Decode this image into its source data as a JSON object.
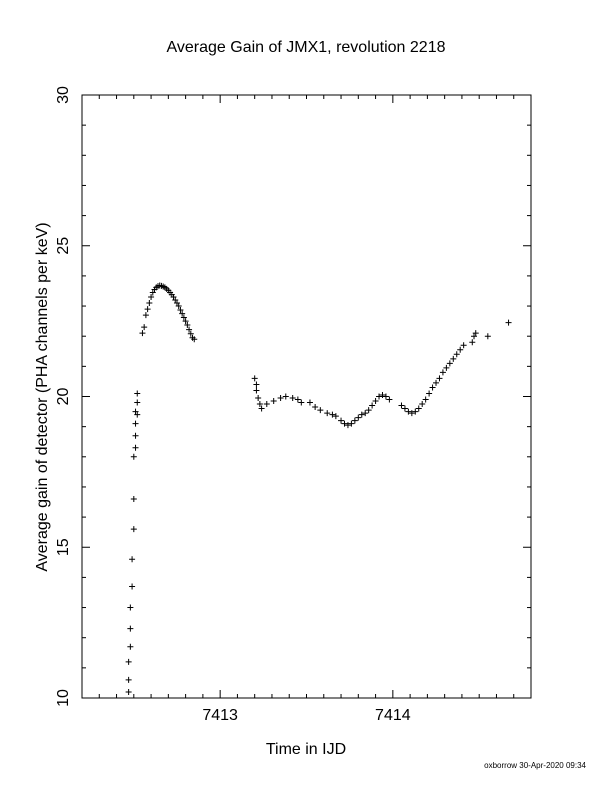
{
  "chart_data": {
    "type": "scatter",
    "title": "Average Gain of JMX1, revolution 2218",
    "xlabel": "Time in IJD",
    "ylabel": "Average gain of detector (PHA channels per keV)",
    "xlim": [
      7412.2,
      7414.8
    ],
    "ylim": [
      10,
      30
    ],
    "xticks": [
      7413,
      7414
    ],
    "yticks": [
      10,
      15,
      20,
      25,
      30
    ],
    "marker": "+",
    "grid": false,
    "series": [
      {
        "points": [
          [
            7412.47,
            10.2
          ],
          [
            7412.47,
            10.6
          ],
          [
            7412.47,
            11.2
          ],
          [
            7412.48,
            11.7
          ],
          [
            7412.48,
            12.3
          ],
          [
            7412.48,
            13.0
          ],
          [
            7412.49,
            13.7
          ],
          [
            7412.49,
            14.6
          ],
          [
            7412.5,
            15.6
          ],
          [
            7412.5,
            16.6
          ],
          [
            7412.5,
            18.0
          ],
          [
            7412.51,
            18.3
          ],
          [
            7412.51,
            18.7
          ],
          [
            7412.51,
            19.1
          ],
          [
            7412.52,
            19.4
          ],
          [
            7412.51,
            19.5
          ],
          [
            7412.52,
            19.8
          ],
          [
            7412.52,
            20.1
          ],
          [
            7412.55,
            22.1
          ],
          [
            7412.56,
            22.3
          ],
          [
            7412.57,
            22.7
          ],
          [
            7412.58,
            22.9
          ],
          [
            7412.59,
            23.1
          ],
          [
            7412.6,
            23.3
          ],
          [
            7412.61,
            23.45
          ],
          [
            7412.62,
            23.55
          ],
          [
            7412.63,
            23.62
          ],
          [
            7412.64,
            23.66
          ],
          [
            7412.65,
            23.68
          ],
          [
            7412.66,
            23.67
          ],
          [
            7412.67,
            23.65
          ],
          [
            7412.68,
            23.62
          ],
          [
            7412.69,
            23.57
          ],
          [
            7412.7,
            23.52
          ],
          [
            7412.71,
            23.45
          ],
          [
            7412.72,
            23.38
          ],
          [
            7412.73,
            23.3
          ],
          [
            7412.74,
            23.2
          ],
          [
            7412.75,
            23.1
          ],
          [
            7412.76,
            23.0
          ],
          [
            7412.77,
            22.87
          ],
          [
            7412.78,
            22.75
          ],
          [
            7412.79,
            22.62
          ],
          [
            7412.8,
            22.5
          ],
          [
            7412.81,
            22.37
          ],
          [
            7412.82,
            22.22
          ],
          [
            7412.83,
            22.08
          ],
          [
            7412.84,
            21.95
          ],
          [
            7412.85,
            21.9
          ],
          [
            7413.2,
            20.6
          ],
          [
            7413.21,
            20.4
          ],
          [
            7413.21,
            20.2
          ],
          [
            7413.22,
            19.95
          ],
          [
            7413.23,
            19.75
          ],
          [
            7413.24,
            19.6
          ],
          [
            7413.27,
            19.75
          ],
          [
            7413.31,
            19.85
          ],
          [
            7413.35,
            19.95
          ],
          [
            7413.38,
            20.0
          ],
          [
            7413.42,
            19.95
          ],
          [
            7413.45,
            19.9
          ],
          [
            7413.47,
            19.8
          ],
          [
            7413.52,
            19.8
          ],
          [
            7413.55,
            19.65
          ],
          [
            7413.58,
            19.55
          ],
          [
            7413.62,
            19.45
          ],
          [
            7413.65,
            19.4
          ],
          [
            7413.67,
            19.35
          ],
          [
            7413.7,
            19.2
          ],
          [
            7413.72,
            19.1
          ],
          [
            7413.74,
            19.05
          ],
          [
            7413.76,
            19.1
          ],
          [
            7413.78,
            19.2
          ],
          [
            7413.8,
            19.3
          ],
          [
            7413.82,
            19.4
          ],
          [
            7413.84,
            19.45
          ],
          [
            7413.86,
            19.55
          ],
          [
            7413.88,
            19.7
          ],
          [
            7413.9,
            19.85
          ],
          [
            7413.92,
            20.0
          ],
          [
            7413.94,
            20.05
          ],
          [
            7413.96,
            20.0
          ],
          [
            7413.98,
            19.9
          ],
          [
            7414.05,
            19.7
          ],
          [
            7414.07,
            19.6
          ],
          [
            7414.09,
            19.5
          ],
          [
            7414.11,
            19.45
          ],
          [
            7414.13,
            19.5
          ],
          [
            7414.15,
            19.6
          ],
          [
            7414.17,
            19.75
          ],
          [
            7414.19,
            19.9
          ],
          [
            7414.21,
            20.1
          ],
          [
            7414.23,
            20.3
          ],
          [
            7414.25,
            20.45
          ],
          [
            7414.27,
            20.6
          ],
          [
            7414.29,
            20.8
          ],
          [
            7414.31,
            20.95
          ],
          [
            7414.33,
            21.1
          ],
          [
            7414.35,
            21.25
          ],
          [
            7414.37,
            21.4
          ],
          [
            7414.39,
            21.55
          ],
          [
            7414.41,
            21.7
          ],
          [
            7414.46,
            21.8
          ],
          [
            7414.47,
            22.0
          ],
          [
            7414.48,
            22.1
          ],
          [
            7414.55,
            22.0
          ],
          [
            7414.67,
            22.45
          ]
        ]
      }
    ]
  },
  "footer": {
    "stamp": "oxborrow 30-Apr-2020 09:34"
  }
}
